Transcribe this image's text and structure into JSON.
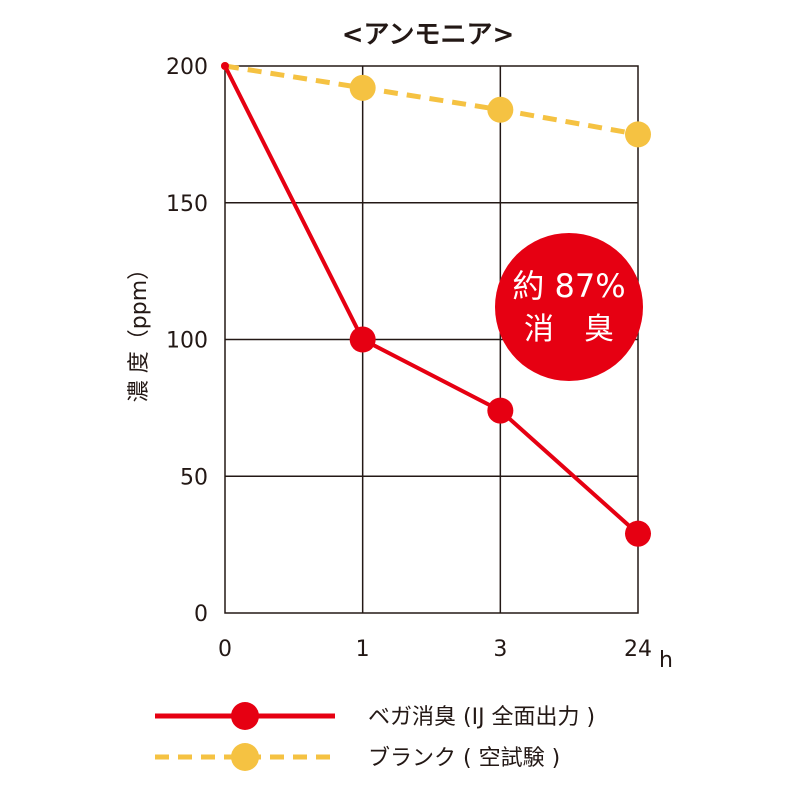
{
  "chart_data": {
    "type": "line",
    "title": "<アンモニア>",
    "ylabel": "濃 度（ppm）",
    "x_unit": "h",
    "categories": [
      "0",
      "1",
      "3",
      "24"
    ],
    "ylim": [
      0,
      200
    ],
    "yticks": [
      0,
      50,
      100,
      150,
      200
    ],
    "grid": true,
    "legend_position": "bottom",
    "series": [
      {
        "name": "ベガ消臭 (IJ 全面出力 )",
        "color": "#e60012",
        "line": "solid",
        "values": [
          200,
          100,
          74,
          29
        ]
      },
      {
        "name": "ブランク ( 空試験 )",
        "color": "#f5c242",
        "line": "dashed",
        "values": [
          200,
          192,
          184,
          175
        ]
      }
    ],
    "annotation": {
      "line1": "約 87%",
      "line2": "消　臭",
      "color": "#e60012"
    }
  }
}
